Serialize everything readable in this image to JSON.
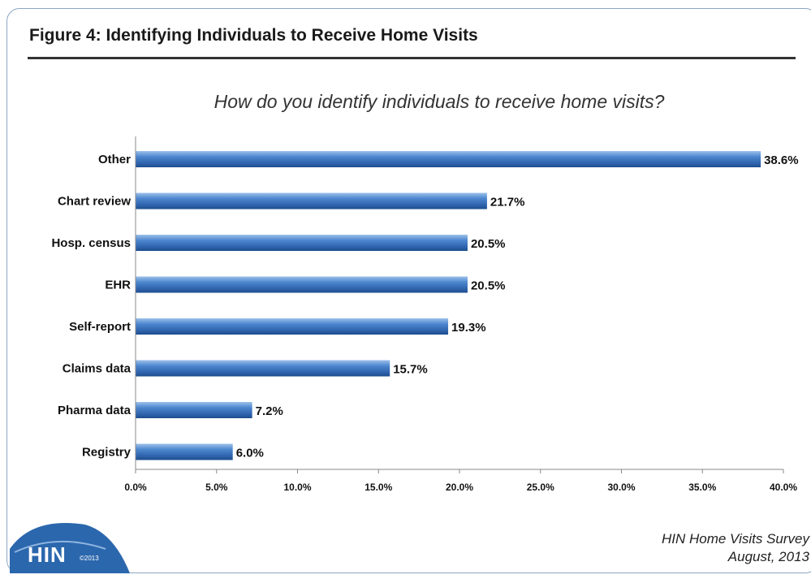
{
  "figure_title": "Figure 4: Identifying Individuals to Receive Home Visits",
  "source_line1": "HIN Home Visits Survey",
  "source_line2": "August, 2013",
  "logo": {
    "text": "HIN",
    "year": "©2013",
    "color": "#1f5d9c"
  },
  "chart_data": {
    "type": "bar",
    "orientation": "horizontal",
    "title": "How do you identify individuals to receive home visits?",
    "categories": [
      "Other",
      "Chart review",
      "Hosp. census",
      "EHR",
      "Self-report",
      "Claims data",
      "Pharma data",
      "Registry"
    ],
    "values": [
      38.6,
      21.7,
      20.5,
      20.5,
      19.3,
      15.7,
      7.2,
      6.0
    ],
    "value_labels": [
      "38.6%",
      "21.7%",
      "20.5%",
      "20.5%",
      "19.3%",
      "15.7%",
      "7.2%",
      "6.0%"
    ],
    "xlim": [
      0,
      40
    ],
    "xticks": [
      0,
      5,
      10,
      15,
      20,
      25,
      30,
      35,
      40
    ],
    "xtick_labels": [
      "0.0%",
      "5.0%",
      "10.0%",
      "15.0%",
      "20.0%",
      "25.0%",
      "30.0%",
      "35.0%",
      "40.0%"
    ],
    "xlabel": "",
    "ylabel": "",
    "grid": false,
    "legend": "none",
    "bar_color": "#3a74bd"
  }
}
